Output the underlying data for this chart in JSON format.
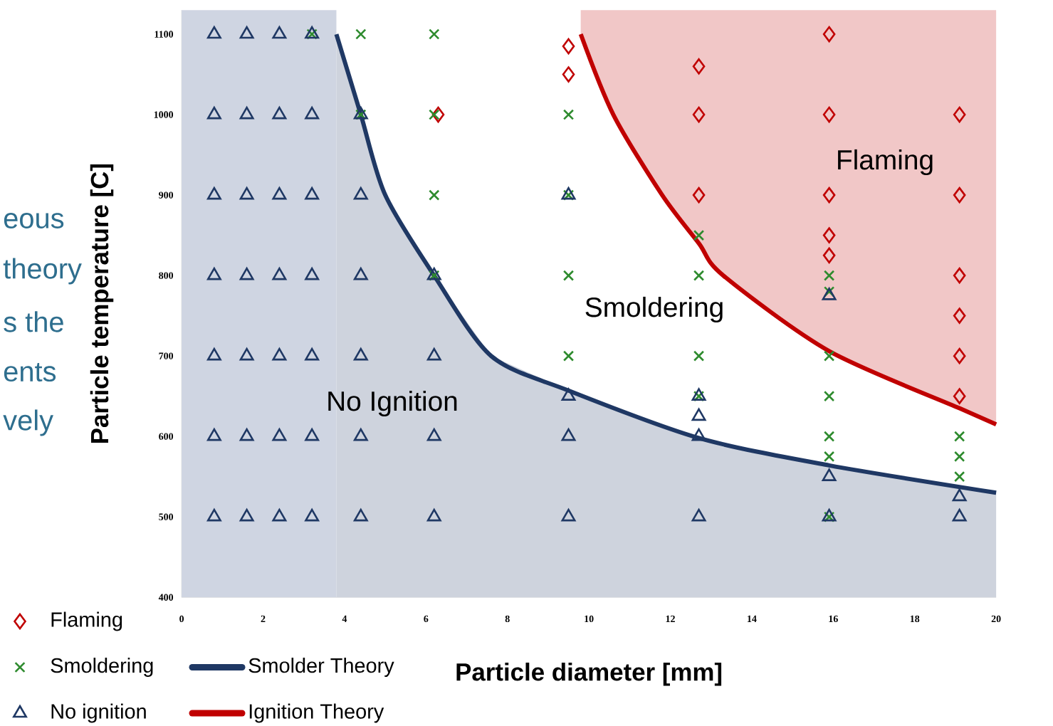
{
  "chart_data": {
    "type": "scatter",
    "xlabel": "Particle diameter [mm]",
    "ylabel": "Particle temperature [C]",
    "xlim": [
      0,
      20
    ],
    "ylim": [
      400,
      1130
    ],
    "xticks": [
      0,
      2,
      4,
      6,
      8,
      10,
      12,
      14,
      16,
      18,
      20
    ],
    "yticks": [
      400,
      500,
      600,
      700,
      800,
      900,
      1000,
      1100
    ],
    "legend": "bottom left",
    "grid": false,
    "series": [
      {
        "name": "Flaming",
        "type": "scatter",
        "marker": "diamond",
        "color": "#c00000",
        "x": [
          6.3,
          9.5,
          9.5,
          12.7,
          12.7,
          12.7,
          15.9,
          15.9,
          15.9,
          15.9,
          15.9,
          19.1,
          19.1,
          19.1,
          19.1,
          19.1,
          19.1
        ],
        "values": [
          1000,
          1085,
          1050,
          1060,
          1000,
          900,
          1100,
          1000,
          900,
          850,
          825,
          1000,
          900,
          800,
          750,
          700,
          650
        ]
      },
      {
        "name": "Smoldering",
        "type": "scatter",
        "marker": "cross",
        "color": "#2e8b2e",
        "x": [
          3.2,
          4.4,
          4.4,
          6.2,
          6.2,
          6.2,
          6.2,
          9.5,
          9.5,
          9.5,
          9.5,
          12.7,
          12.7,
          12.7,
          12.7,
          15.9,
          15.9,
          15.9,
          15.9,
          15.9,
          15.9,
          15.9,
          19.1,
          19.1,
          19.1
        ],
        "values": [
          1100,
          1100,
          1000,
          1100,
          1000,
          900,
          800,
          1000,
          900,
          800,
          700,
          850,
          800,
          700,
          650,
          800,
          780,
          700,
          650,
          600,
          575,
          500,
          600,
          575,
          550
        ]
      },
      {
        "name": "No ignition",
        "type": "scatter",
        "marker": "triangle",
        "color": "#1f3864",
        "x": [
          0.8,
          0.8,
          0.8,
          0.8,
          0.8,
          0.8,
          0.8,
          1.6,
          1.6,
          1.6,
          1.6,
          1.6,
          1.6,
          1.6,
          2.4,
          2.4,
          2.4,
          2.4,
          2.4,
          2.4,
          2.4,
          3.2,
          3.2,
          3.2,
          3.2,
          3.2,
          3.2,
          3.2,
          4.4,
          4.4,
          4.4,
          4.4,
          4.4,
          4.4,
          6.2,
          6.2,
          6.2,
          6.2,
          9.5,
          9.5,
          9.5,
          9.5,
          12.7,
          12.7,
          12.7,
          12.7,
          15.9,
          15.9,
          15.9,
          19.1,
          19.1
        ],
        "values": [
          1100,
          1000,
          900,
          800,
          700,
          600,
          500,
          1100,
          1000,
          900,
          800,
          700,
          600,
          500,
          1100,
          1000,
          900,
          800,
          700,
          600,
          500,
          1100,
          1000,
          900,
          800,
          700,
          600,
          500,
          1000,
          900,
          800,
          700,
          600,
          500,
          800,
          700,
          600,
          500,
          900,
          650,
          600,
          500,
          650,
          625,
          600,
          500,
          775,
          550,
          500,
          525,
          500
        ]
      },
      {
        "name": "Smolder Theory",
        "type": "line",
        "marker": "none",
        "color": "#1f3864",
        "x": [
          3.8,
          4.4,
          5.0,
          6.2,
          7.6,
          9.5,
          12.7,
          15.9,
          20
        ],
        "values": [
          1100,
          1000,
          900,
          800,
          700,
          657,
          598,
          564,
          530
        ],
        "lower": [
          400,
          400,
          400,
          400,
          400,
          400,
          400,
          400,
          400
        ],
        "upper": [
          1100,
          1000,
          900,
          800,
          700,
          657,
          598,
          564,
          530
        ]
      },
      {
        "name": "Ignition Theory",
        "type": "line",
        "marker": "none",
        "color": "#c00000",
        "x": [
          9.8,
          10.6,
          11.8,
          12.7,
          13.3,
          15.9,
          19.1,
          20
        ],
        "values": [
          1100,
          1000,
          900,
          840,
          800,
          706,
          635,
          615
        ],
        "lower": [
          1100,
          1000,
          900,
          840,
          800,
          706,
          635,
          615
        ],
        "upper": [
          1130,
          1130,
          1130,
          1130,
          1130,
          1130,
          1130,
          1130
        ]
      }
    ],
    "bands": [
      {
        "axis": "x",
        "from": 0,
        "to": 3.8,
        "color": "#cfd5e2"
      }
    ],
    "annotations": [
      "Flaming",
      "Smoldering",
      "No Ignition",
      "eous",
      "theory",
      "s the",
      "ents",
      "vely"
    ]
  }
}
